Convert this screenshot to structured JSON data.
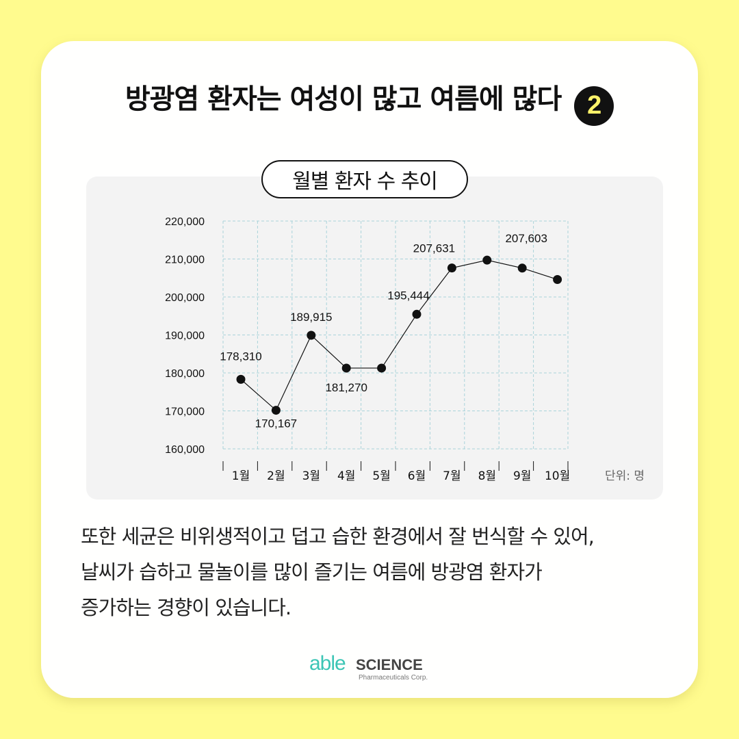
{
  "title": "방광염 환자는 여성이 많고 여름에 많다",
  "title_number": "2",
  "chart_title": "월별 환자 수 추이",
  "unit_label": "단위: 명",
  "chart_data": {
    "type": "line",
    "title": "월별 환자 수 추이",
    "categories": [
      "1월",
      "2월",
      "3월",
      "4월",
      "5월",
      "6월",
      "7월",
      "8월",
      "9월",
      "10월"
    ],
    "series": [
      {
        "values": [
          178310,
          170167,
          189915,
          181270,
          181270,
          195444,
          207631,
          209700,
          207603,
          204600
        ]
      }
    ],
    "data_labels": [
      "178,310",
      "170,167",
      "189,915",
      "181,270",
      null,
      "195,444",
      "207,631",
      null,
      "207,603",
      null
    ],
    "y_ticks": [
      "220,000",
      "210,000",
      "200,000",
      "190,000",
      "180,000",
      "170,000",
      "160,000"
    ],
    "ylim": [
      160000,
      220000
    ],
    "grid": true,
    "colors": {
      "line": "#111111",
      "marker": "#111111",
      "grid": "#A9D3DA"
    }
  },
  "body_lines": [
    "또한 세균은 비위생적이고 덥고 습한 환경에서 잘 번식할 수 있어,",
    "날씨가 습하고 물놀이를 많이 즐기는 여름에 방광염 환자가",
    "증가하는 경향이 있습니다."
  ],
  "logo": {
    "brand": "able",
    "name": "SCIENCE",
    "sub": "Pharmaceuticals Corp."
  },
  "colors": {
    "background": "#FFFB8E",
    "card": "#FFFFFE",
    "panel": "#F3F3F3",
    "accent": "#FFF36A",
    "logo_teal": "#3CC5B5"
  }
}
